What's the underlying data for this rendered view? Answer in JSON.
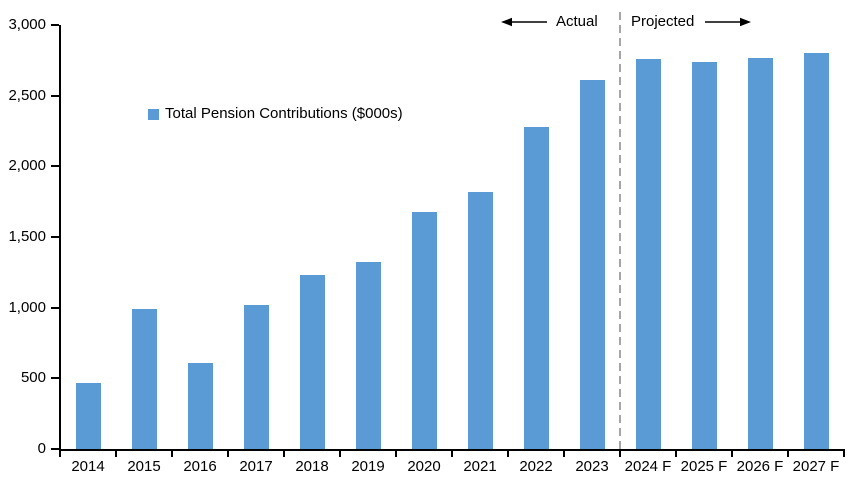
{
  "chart_data": {
    "type": "bar",
    "title": "",
    "legend": "Total Pension Contributions ($000s)",
    "legend_position": "inside-upper-left",
    "categories": [
      "2014",
      "2015",
      "2016",
      "2017",
      "2018",
      "2019",
      "2020",
      "2021",
      "2022",
      "2023",
      "2024 F",
      "2025 F",
      "2026 F",
      "2027 F"
    ],
    "values": [
      470,
      990,
      610,
      1020,
      1230,
      1320,
      1680,
      1820,
      2280,
      2610,
      2760,
      2740,
      2770,
      2800
    ],
    "xlabel": "",
    "ylabel": "",
    "ylim": [
      0,
      3000
    ],
    "ytick_interval": 500,
    "ytick_labels_bottom_to_top": [
      "0",
      "500",
      "1,000",
      "1,500",
      "2,000",
      "2,500",
      "3,000"
    ],
    "grid": false,
    "bar_color": "#5B9BD5",
    "axis_color": "#000000",
    "divider_color": "#A6A6A6",
    "annotations": {
      "actual_label": "Actual",
      "projected_label": "Projected",
      "divider_between": [
        "2023",
        "2024 F"
      ]
    }
  }
}
